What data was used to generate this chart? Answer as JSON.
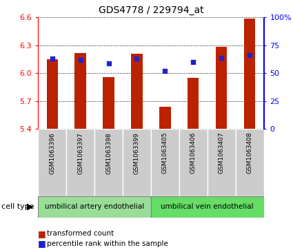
{
  "title": "GDS4778 / 229794_at",
  "samples": [
    "GSM1063396",
    "GSM1063397",
    "GSM1063398",
    "GSM1063399",
    "GSM1063405",
    "GSM1063406",
    "GSM1063407",
    "GSM1063408"
  ],
  "transformed_count": [
    6.15,
    6.22,
    5.96,
    6.21,
    5.64,
    5.95,
    6.28,
    6.59
  ],
  "percentile_rank": [
    63,
    62,
    59,
    63,
    52,
    60,
    64,
    66
  ],
  "ylim_left": [
    5.4,
    6.6
  ],
  "ylim_right": [
    0,
    100
  ],
  "yticks_left": [
    5.4,
    5.7,
    6.0,
    6.3,
    6.6
  ],
  "ytick_labels_left": [
    "5.4",
    "5.7",
    "6.0",
    "6.3",
    "6.6"
  ],
  "yticks_right": [
    0,
    25,
    50,
    75,
    100
  ],
  "ytick_labels_right": [
    "0",
    "25",
    "50",
    "75",
    "100%"
  ],
  "bar_color": "#bb2200",
  "dot_color": "#2222cc",
  "bar_width": 0.4,
  "cell_type_groups": [
    {
      "label": "umbilical artery endothelial",
      "color": "#99dd99",
      "start": 0,
      "end": 3
    },
    {
      "label": "umbilical vein endothelial",
      "color": "#66dd66",
      "start": 4,
      "end": 7
    }
  ],
  "cell_type_label": "cell type",
  "legend_items": [
    {
      "label": "transformed count",
      "color": "#bb2200"
    },
    {
      "label": "percentile rank within the sample",
      "color": "#2222cc"
    }
  ],
  "bg_color_labels": "#cccccc",
  "bg_color_fig": "#ffffff"
}
